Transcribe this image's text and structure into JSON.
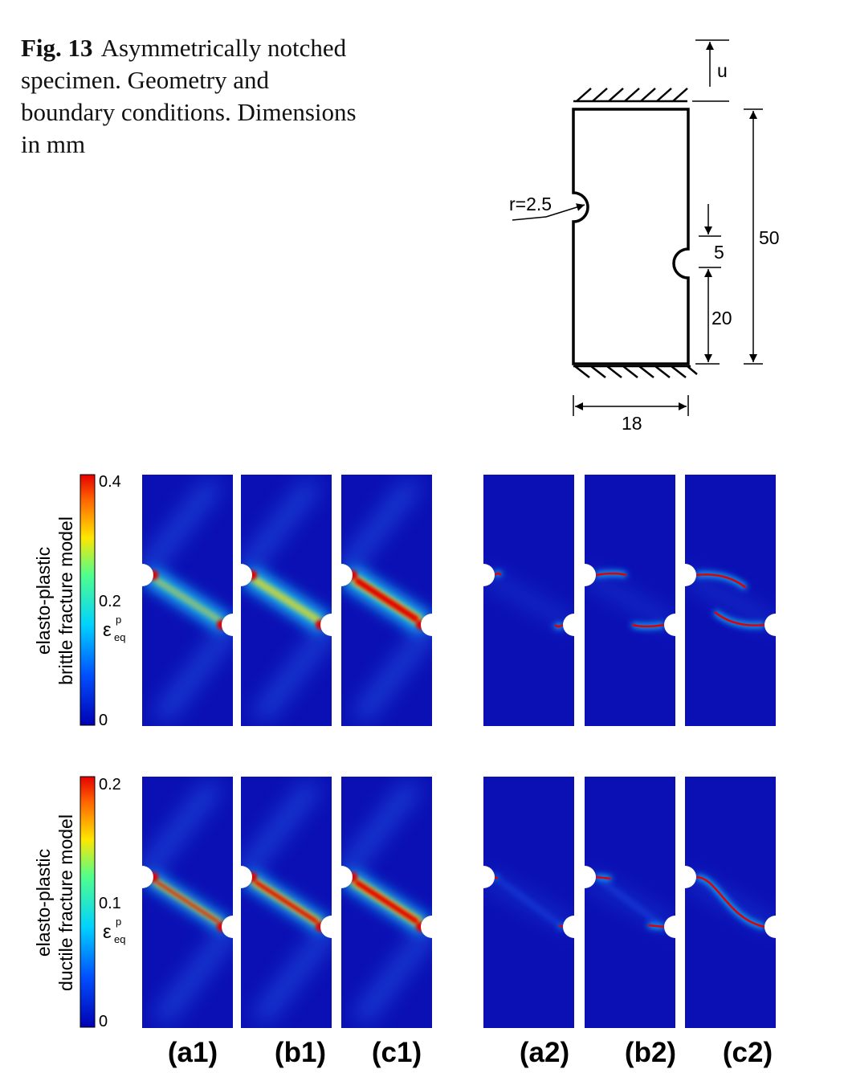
{
  "caption": {
    "label": "Fig. 13",
    "text": "Asymmetrically notched specimen. Geometry and boundary conditions. Dimensions in mm"
  },
  "geometry": {
    "displacement_label": "u",
    "radius_label": "r=2.5",
    "notch_gap_label": "5",
    "notch_height_label": "20",
    "height_label": "50",
    "width_label": "18"
  },
  "rows": [
    {
      "label_line1": "elasto-plastic",
      "label_line2": "brittle fracture model",
      "colorbar": {
        "max": "0.4",
        "mid": "0.2",
        "min": "0",
        "symbol": "ε",
        "sup": "p",
        "sub": "eq"
      }
    },
    {
      "label_line1": "elasto-plastic",
      "label_line2": "ductile fracture model",
      "colorbar": {
        "max": "0.2",
        "mid": "0.1",
        "min": "0",
        "symbol": "ε",
        "sup": "p",
        "sub": "eq"
      }
    }
  ],
  "panel_labels": [
    "(a1)",
    "(b1)",
    "(c1)",
    "(a2)",
    "(b2)",
    "(c2)"
  ],
  "colors": {
    "field_background": "#0b10b4",
    "band_cyan": "#19c8ff",
    "band_yellow": "#ffe100",
    "band_red": "#e10000"
  }
}
